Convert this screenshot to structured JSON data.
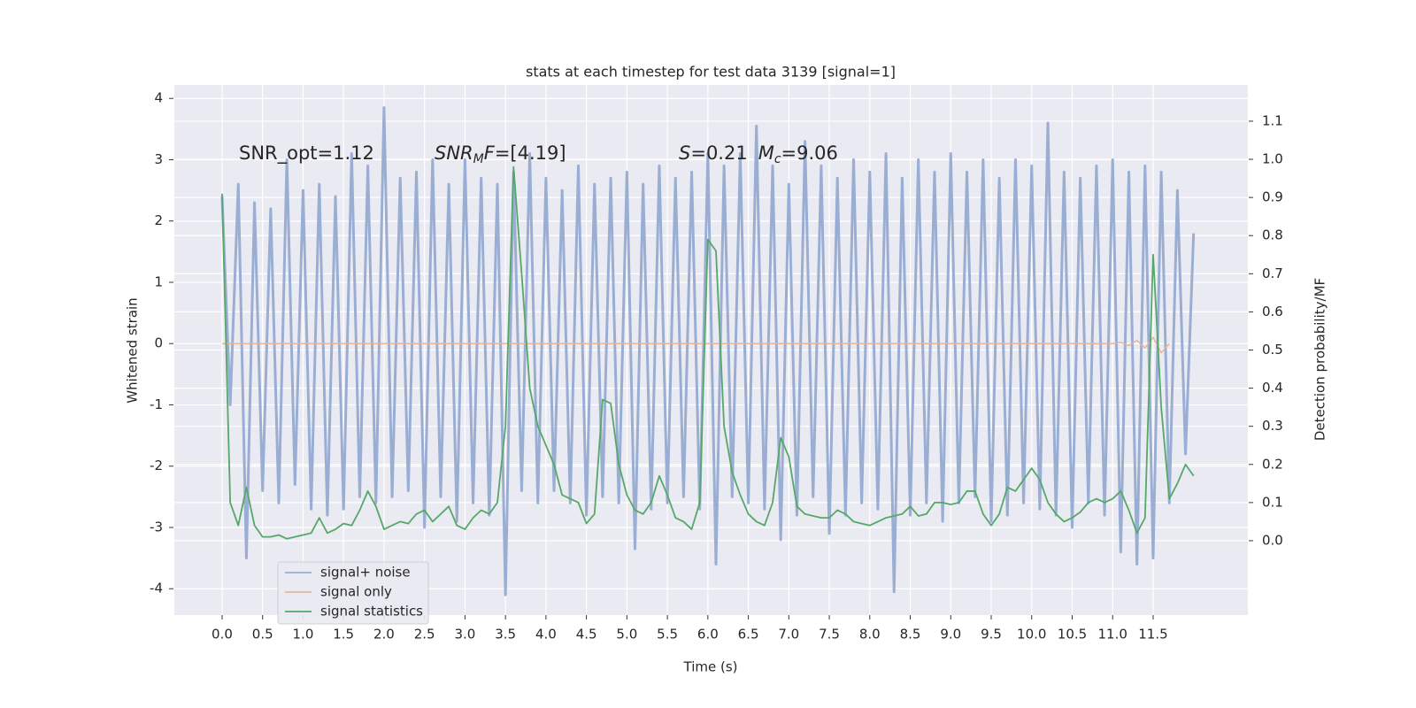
{
  "chart_data": {
    "type": "line",
    "title": "stats at each timestep for test data 3139 [signal=1]",
    "xlabel": "Time (s)",
    "ylabel": "Whitened strain",
    "y2label": "Detection probability/MF",
    "annotations": [
      [
        "SNR_opt=1.12"
      ],
      [
        "SNR",
        "M",
        "F",
        "=[4.19]"
      ],
      [
        "S",
        "=0.21",
        "M",
        "c",
        "=9.06"
      ]
    ],
    "x": [
      0.0,
      0.1,
      0.2,
      0.3,
      0.4,
      0.5,
      0.6,
      0.7,
      0.8,
      0.9,
      1.0,
      1.1,
      1.2,
      1.3,
      1.4,
      1.5,
      1.6,
      1.7,
      1.8,
      1.9,
      2.0,
      2.1,
      2.2,
      2.3,
      2.4,
      2.5,
      2.6,
      2.7,
      2.8,
      2.9,
      3.0,
      3.1,
      3.2,
      3.3,
      3.4,
      3.5,
      3.6,
      3.7,
      3.8,
      3.9,
      4.0,
      4.1,
      4.2,
      4.3,
      4.4,
      4.5,
      4.6,
      4.7,
      4.8,
      4.9,
      5.0,
      5.1,
      5.2,
      5.3,
      5.4,
      5.5,
      5.6,
      5.7,
      5.8,
      5.9,
      6.0,
      6.1,
      6.2,
      6.3,
      6.4,
      6.5,
      6.6,
      6.7,
      6.8,
      6.9,
      7.0,
      7.1,
      7.2,
      7.3,
      7.4,
      7.5,
      7.6,
      7.7,
      7.8,
      7.9,
      8.0,
      8.1,
      8.2,
      8.3,
      8.4,
      8.5,
      8.6,
      8.7,
      8.8,
      8.9,
      9.0,
      9.1,
      9.2,
      9.3,
      9.4,
      9.5,
      9.6,
      9.7,
      9.8,
      9.9,
      10.0,
      10.1,
      10.2,
      10.3,
      10.4,
      10.5,
      10.6,
      10.7,
      10.8,
      10.9,
      11.0,
      11.1,
      11.2,
      11.3,
      11.4,
      11.5,
      11.6,
      11.7,
      11.8,
      11.9,
      12.0
    ],
    "series": [
      {
        "name": "signal+ noise",
        "color": "#9aaed3",
        "values": [
          2.4,
          -1.0,
          2.6,
          -3.5,
          2.3,
          -2.4,
          2.2,
          -2.6,
          3.0,
          -2.3,
          2.5,
          -2.7,
          2.6,
          -2.8,
          2.4,
          -2.7,
          3.1,
          -2.5,
          2.9,
          -2.6,
          3.85,
          -2.5,
          2.7,
          -2.4,
          2.8,
          -3.0,
          3.0,
          -2.5,
          2.6,
          -2.9,
          3.0,
          -2.6,
          2.7,
          -2.8,
          2.6,
          -4.1,
          2.8,
          -2.4,
          3.1,
          -2.6,
          2.7,
          -2.4,
          2.5,
          -2.6,
          2.9,
          -2.8,
          2.6,
          -2.5,
          2.7,
          -2.6,
          2.8,
          -3.35,
          2.6,
          -2.7,
          2.9,
          -2.6,
          2.7,
          -2.5,
          2.8,
          -2.7,
          3.1,
          -3.6,
          2.9,
          -2.5,
          3.1,
          -2.6,
          3.55,
          -2.7,
          2.9,
          -3.2,
          2.6,
          -2.8,
          3.3,
          -2.5,
          2.9,
          -3.1,
          2.7,
          -2.8,
          3.0,
          -2.6,
          2.8,
          -2.7,
          3.1,
          -4.05,
          2.7,
          -2.8,
          3.0,
          -2.6,
          2.8,
          -2.9,
          3.1,
          -2.6,
          2.8,
          -2.5,
          3.0,
          -2.9,
          2.7,
          -2.8,
          3.0,
          -2.6,
          2.9,
          -2.7,
          3.6,
          -2.8,
          2.8,
          -3.0,
          2.7,
          -2.6,
          2.9,
          -2.8,
          3.0,
          -3.4,
          2.8,
          -3.6,
          2.9,
          -3.5,
          2.8,
          -2.6,
          2.5,
          -1.8,
          1.8
        ]
      },
      {
        "name": "signal only",
        "color": "#e8b49a",
        "x": [
          0.0,
          11.0,
          11.1,
          11.2,
          11.3,
          11.4,
          11.5,
          11.6,
          11.7
        ],
        "values": [
          0,
          0,
          0.02,
          -0.03,
          0.05,
          -0.07,
          0.1,
          -0.15,
          0
        ]
      },
      {
        "name": "signal statistics",
        "color": "#55a868",
        "axis": "y2",
        "values": [
          0.91,
          0.1,
          0.04,
          0.14,
          0.04,
          0.01,
          0.01,
          0.015,
          0.005,
          0.01,
          0.015,
          0.02,
          0.06,
          0.02,
          0.03,
          0.045,
          0.04,
          0.08,
          0.13,
          0.09,
          0.03,
          0.04,
          0.05,
          0.045,
          0.07,
          0.08,
          0.05,
          0.07,
          0.09,
          0.04,
          0.03,
          0.06,
          0.08,
          0.07,
          0.1,
          0.3,
          0.98,
          0.7,
          0.4,
          0.3,
          0.25,
          0.2,
          0.12,
          0.11,
          0.1,
          0.045,
          0.07,
          0.37,
          0.36,
          0.2,
          0.12,
          0.08,
          0.07,
          0.1,
          0.17,
          0.12,
          0.06,
          0.05,
          0.03,
          0.1,
          0.79,
          0.76,
          0.3,
          0.18,
          0.12,
          0.07,
          0.05,
          0.04,
          0.1,
          0.27,
          0.22,
          0.09,
          0.07,
          0.065,
          0.06,
          0.06,
          0.08,
          0.07,
          0.05,
          0.045,
          0.04,
          0.05,
          0.06,
          0.065,
          0.07,
          0.09,
          0.065,
          0.07,
          0.1,
          0.1,
          0.095,
          0.1,
          0.13,
          0.13,
          0.07,
          0.04,
          0.07,
          0.14,
          0.13,
          0.16,
          0.19,
          0.16,
          0.1,
          0.07,
          0.05,
          0.06,
          0.075,
          0.1,
          0.11,
          0.1,
          0.11,
          0.13,
          0.08,
          0.02,
          0.06,
          0.75,
          0.35,
          0.11,
          0.15,
          0.2,
          0.17
        ]
      }
    ],
    "xlim": [
      -0.59,
      12.67
    ],
    "ylim": [
      -4.43,
      4.22
    ],
    "y2lim": [
      -0.195,
      1.195
    ],
    "xticks": [
      {
        "value": 0,
        "label": "0.0"
      },
      0.5,
      {
        "value": 1,
        "label": "1.0"
      },
      1.5,
      {
        "value": 2,
        "label": "2.0"
      },
      2.5,
      {
        "value": 3,
        "label": "3.0"
      },
      3.5,
      {
        "value": 4,
        "label": "4.0"
      },
      4.5,
      {
        "value": 5,
        "label": "5.0"
      },
      5.5,
      {
        "value": 6,
        "label": "6.0"
      },
      6.5,
      {
        "value": 7,
        "label": "7.0"
      },
      7.5,
      {
        "value": 8,
        "label": "8.0"
      },
      8.5,
      {
        "value": 9,
        "label": "9.0"
      },
      9.5,
      {
        "value": 10,
        "label": "10.0"
      },
      10.5,
      {
        "value": 11,
        "label": "11.0"
      },
      11.5
    ],
    "yticks": [
      -4,
      -3,
      -2,
      -1,
      0,
      1,
      2,
      3,
      4
    ],
    "y2ticks": [
      {
        "value": 0,
        "label": "0.0"
      },
      0.1,
      0.2,
      0.3,
      0.4,
      0.5,
      0.6,
      0.7,
      0.8,
      0.9,
      {
        "value": 1,
        "label": "1.0"
      },
      1.1
    ],
    "grid": true,
    "legend": "lower left"
  }
}
